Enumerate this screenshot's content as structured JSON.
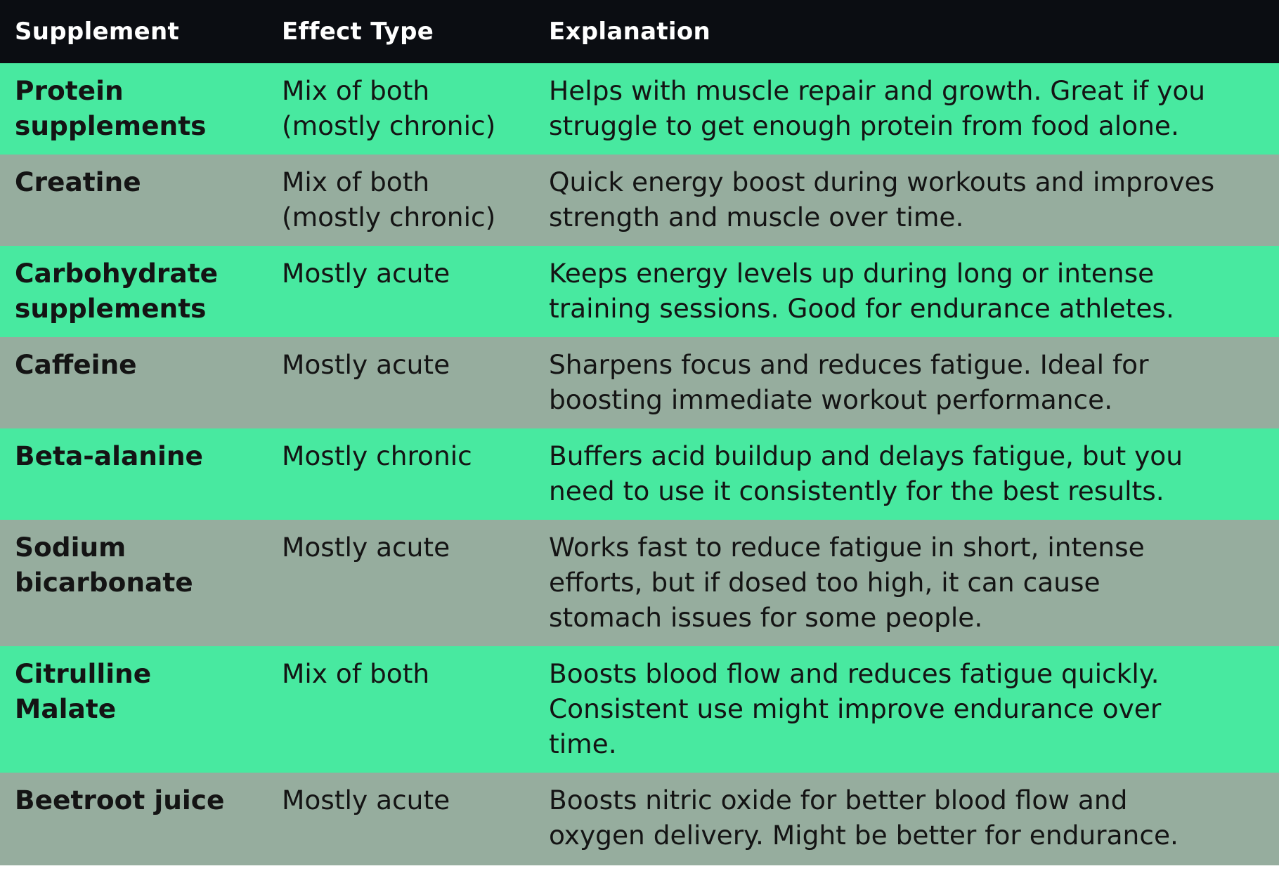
{
  "table": {
    "headers": {
      "supplement": "Supplement",
      "effect_type": "Effect Type",
      "explanation": "Explanation"
    },
    "rows": [
      {
        "supplement": [
          "Protein",
          "supplements"
        ],
        "effect_type": [
          "Mix of both",
          "(mostly chronic)"
        ],
        "explanation": [
          "Helps with muscle repair and growth. Great if you",
          "struggle to get enough protein from food alone."
        ]
      },
      {
        "supplement": [
          "Creatine"
        ],
        "effect_type": [
          "Mix of both",
          "(mostly chronic)"
        ],
        "explanation": [
          "Quick energy boost during workouts and improves",
          "strength and muscle over time."
        ]
      },
      {
        "supplement": [
          "Carbohydrate",
          "supplements"
        ],
        "effect_type": [
          "Mostly acute"
        ],
        "explanation": [
          "Keeps energy levels up during long or intense",
          "training sessions. Good for endurance athletes."
        ]
      },
      {
        "supplement": [
          "Caffeine"
        ],
        "effect_type": [
          "Mostly acute"
        ],
        "explanation": [
          "Sharpens focus and reduces fatigue. Ideal for",
          "boosting immediate workout performance."
        ]
      },
      {
        "supplement": [
          "Beta-alanine"
        ],
        "effect_type": [
          "Mostly chronic"
        ],
        "explanation": [
          "Buffers acid buildup and delays fatigue, but you",
          "need to use it consistently for the best results."
        ]
      },
      {
        "supplement": [
          "Sodium",
          "bicarbonate"
        ],
        "effect_type": [
          "Mostly acute"
        ],
        "explanation": [
          "Works fast to reduce fatigue in short, intense",
          "efforts, but if dosed too high, it can cause",
          "stomach issues for some people."
        ]
      },
      {
        "supplement": [
          "Citrulline",
          "Malate"
        ],
        "effect_type": [
          "Mix of both"
        ],
        "explanation": [
          "Boosts blood flow and reduces fatigue quickly.",
          "Consistent use might improve endurance over",
          "time."
        ]
      },
      {
        "supplement": [
          "Beetroot juice"
        ],
        "effect_type": [
          "Mostly acute"
        ],
        "explanation": [
          "Boosts nitric oxide for better blood flow and",
          "oxygen delivery. Might be better for endurance."
        ]
      }
    ]
  },
  "colors": {
    "header_bg": "#0b0d12",
    "row_green": "#48e9a0",
    "row_gray": "#96ad9e"
  }
}
